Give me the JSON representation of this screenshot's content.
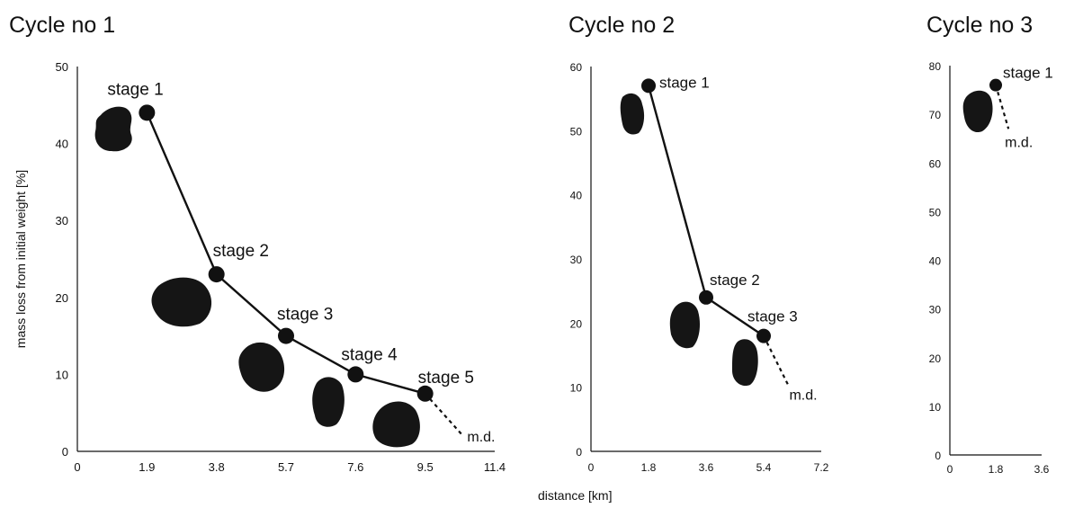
{
  "chart_data": [
    {
      "type": "line",
      "title": "Cycle no 1",
      "ylabel": "mass loss from initial weight [%]",
      "xlabel": "",
      "x_ticks": [
        "0",
        "1.9",
        "3.8",
        "5.7",
        "7.6",
        "9.5",
        "11.4"
      ],
      "y_ticks": [
        "0",
        "10",
        "20",
        "30",
        "40",
        "50"
      ],
      "xlim": [
        0,
        11.4
      ],
      "ylim": [
        0,
        50
      ],
      "series": [
        {
          "points": [
            {
              "x": 1.9,
              "y": 44,
              "label": "stage 1"
            },
            {
              "x": 3.8,
              "y": 23,
              "label": "stage 2"
            },
            {
              "x": 5.7,
              "y": 15,
              "label": "stage 3"
            },
            {
              "x": 7.6,
              "y": 10,
              "label": "stage 4"
            },
            {
              "x": 9.5,
              "y": 7.5,
              "label": "stage 5"
            }
          ],
          "extension": {
            "to": {
              "x": 10.5,
              "y": 2.2
            },
            "label": "m.d.",
            "style": "dashed"
          }
        }
      ],
      "grid": false
    },
    {
      "type": "line",
      "title": "Cycle no 2",
      "ylabel": "",
      "xlabel": "distance [km]",
      "x_ticks": [
        "0",
        "1.8",
        "3.6",
        "5.4",
        "7.2"
      ],
      "y_ticks": [
        "0",
        "10",
        "20",
        "30",
        "40",
        "50",
        "60"
      ],
      "xlim": [
        0,
        7.2
      ],
      "ylim": [
        0,
        60
      ],
      "series": [
        {
          "points": [
            {
              "x": 1.8,
              "y": 57,
              "label": "stage 1"
            },
            {
              "x": 3.6,
              "y": 24,
              "label": "stage 2"
            },
            {
              "x": 5.4,
              "y": 18,
              "label": "stage 3"
            }
          ],
          "extension": {
            "to": {
              "x": 6.2,
              "y": 10
            },
            "label": "m.d.",
            "style": "dashed"
          }
        }
      ],
      "grid": false
    },
    {
      "type": "line",
      "title": "Cycle no 3",
      "ylabel": "",
      "xlabel": "",
      "x_ticks": [
        "0",
        "1.8",
        "3.6"
      ],
      "y_ticks": [
        "0",
        "10",
        "20",
        "30",
        "40",
        "50",
        "60",
        "70",
        "80"
      ],
      "xlim": [
        0,
        3.6
      ],
      "ylim": [
        0,
        80
      ],
      "series": [
        {
          "points": [
            {
              "x": 1.8,
              "y": 76,
              "label": "stage 1"
            }
          ],
          "extension": {
            "to": {
              "x": 2.3,
              "y": 67
            },
            "label": "m.d.",
            "style": "dashed"
          }
        }
      ],
      "grid": false
    }
  ],
  "colors": {
    "ink": "#111111",
    "background": "#ffffff"
  },
  "pebble_icons": [
    "pebble-icon"
  ]
}
